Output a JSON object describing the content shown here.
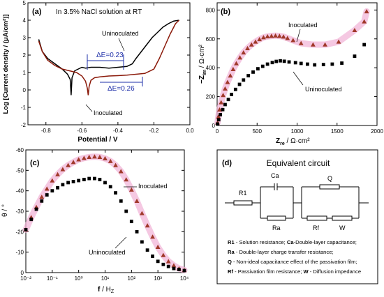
{
  "colors": {
    "uninoculated": "#000000",
    "inoculated_line": "#8B1A0A",
    "inoculated_marker": "#A0392A",
    "inoculated_halo": "#F2B6D8",
    "annotation": "#1E2FA8"
  },
  "chart_data": [
    {
      "panel": "(a)",
      "type": "line",
      "title": "In 3.5% NaCl solution at RT",
      "xlabel": "Potential / V",
      "ylabel": "Log [Current density / (μA/cm²)]",
      "xlim": [
        -0.9,
        0.0
      ],
      "ylim": [
        -2.0,
        5.0
      ],
      "xticks": [
        "-0.8",
        "-0.6",
        "-0.4",
        "-0.2",
        "0.0"
      ],
      "xtick_values": [
        -0.8,
        -0.6,
        -0.4,
        -0.2,
        0.0
      ],
      "yticks": [
        "-2",
        "-1",
        "0",
        "1",
        "2",
        "3",
        "4",
        "5"
      ],
      "ytick_values": [
        -2,
        -1,
        0,
        1,
        2,
        3,
        4,
        5
      ],
      "series": [
        {
          "name": "Uninoculated",
          "x": [
            -0.84,
            -0.82,
            -0.79,
            -0.75,
            -0.71,
            -0.68,
            -0.665,
            -0.66,
            -0.655,
            -0.64,
            -0.62,
            -0.6,
            -0.58,
            -0.55,
            -0.5,
            -0.45,
            -0.4,
            -0.35,
            -0.32,
            -0.3,
            -0.27,
            -0.24,
            -0.21,
            -0.18,
            -0.15,
            -0.12,
            -0.09,
            -0.06
          ],
          "y": [
            2.9,
            2.2,
            1.8,
            1.5,
            1.2,
            0.9,
            0.6,
            -0.3,
            0.7,
            1.1,
            1.2,
            1.3,
            1.25,
            1.3,
            1.3,
            1.25,
            1.3,
            1.35,
            1.5,
            1.8,
            2.2,
            2.6,
            3.0,
            3.3,
            3.6,
            3.8,
            3.95,
            4.0
          ]
        },
        {
          "name": "Inoculated",
          "x": [
            -0.84,
            -0.82,
            -0.79,
            -0.75,
            -0.71,
            -0.67,
            -0.63,
            -0.6,
            -0.58,
            -0.57,
            -0.565,
            -0.56,
            -0.55,
            -0.53,
            -0.5,
            -0.45,
            -0.4,
            -0.35,
            -0.3,
            -0.25,
            -0.2,
            -0.17,
            -0.14,
            -0.11,
            -0.08,
            -0.06
          ],
          "y": [
            2.8,
            2.2,
            1.7,
            1.4,
            1.2,
            1.1,
            1.0,
            0.8,
            0.5,
            0.1,
            -0.3,
            0.2,
            0.55,
            0.7,
            0.75,
            0.8,
            0.82,
            0.85,
            0.9,
            0.95,
            1.2,
            1.8,
            2.5,
            3.2,
            3.8,
            4.0
          ]
        }
      ],
      "annotations": {
        "dE1": "ΔE=0.23",
        "dE2": "ΔE=0.26",
        "lab_un": "Uninoculated",
        "lab_in": "Inoculated"
      }
    },
    {
      "panel": "(b)",
      "type": "scatter",
      "xlabel": "Z_re / Ω·cm²",
      "ylabel": "−Z_im / Ω·cm²",
      "xlim": [
        0,
        2000
      ],
      "ylim": [
        0,
        850
      ],
      "xticks": [
        "0",
        "500",
        "1000",
        "1500",
        "2000"
      ],
      "xtick_values": [
        0,
        500,
        1000,
        1500,
        2000
      ],
      "yticks": [
        "0",
        "200",
        "400",
        "600",
        "800"
      ],
      "ytick_values": [
        0,
        200,
        400,
        600,
        800
      ],
      "series": [
        {
          "name": "Inoculated",
          "marker": "triangle",
          "x": [
            5,
            15,
            30,
            50,
            75,
            100,
            130,
            165,
            200,
            240,
            285,
            330,
            380,
            430,
            480,
            530,
            580,
            630,
            680,
            730,
            780,
            830,
            880,
            950,
            1050,
            1200,
            1350,
            1520,
            1720,
            1840,
            1870
          ],
          "y": [
            20,
            60,
            110,
            160,
            210,
            255,
            300,
            345,
            390,
            430,
            470,
            505,
            535,
            560,
            580,
            597,
            610,
            617,
            620,
            622,
            620,
            615,
            605,
            590,
            570,
            560,
            560,
            580,
            660,
            720,
            790
          ]
        },
        {
          "name": "Uninoculated",
          "marker": "square",
          "x": [
            5,
            20,
            40,
            70,
            100,
            140,
            180,
            230,
            280,
            330,
            390,
            450,
            510,
            570,
            630,
            690,
            740,
            790,
            840,
            900,
            980,
            1050,
            1130,
            1220,
            1330,
            1440,
            1560,
            1720,
            1840
          ],
          "y": [
            10,
            40,
            75,
            110,
            145,
            180,
            215,
            250,
            285,
            315,
            345,
            370,
            393,
            410,
            425,
            436,
            444,
            448,
            445,
            440,
            435,
            430,
            425,
            420,
            422,
            425,
            432,
            480,
            560
          ]
        }
      ],
      "annotations": {
        "lab_in": "Inoculated",
        "lab_un": "Uninoculated"
      }
    },
    {
      "panel": "(c)",
      "type": "scatter",
      "xlabel": "f / Hz",
      "ylabel": "θ / °",
      "xscale": "log",
      "xlim": [
        0.01,
        10000
      ],
      "ylim": [
        0,
        -60
      ],
      "xticks": [
        "10⁻²",
        "10⁻¹",
        "10⁰",
        "10¹",
        "10²",
        "10³",
        "10⁴"
      ],
      "xtick_values": [
        0.01,
        0.1,
        1,
        10,
        100,
        1000,
        10000
      ],
      "yticks": [
        "0",
        "-10",
        "-20",
        "-30",
        "-40",
        "-50",
        "-60"
      ],
      "ytick_values": [
        0,
        -10,
        -20,
        -30,
        -40,
        -50,
        -60
      ],
      "series": [
        {
          "name": "Inoculated",
          "marker": "triangle",
          "x": [
            0.01,
            0.016,
            0.025,
            0.04,
            0.063,
            0.1,
            0.16,
            0.25,
            0.4,
            0.63,
            1,
            1.6,
            2.5,
            4,
            6.3,
            10,
            16,
            25,
            40,
            63,
            100,
            160,
            250,
            400,
            630,
            1000,
            1600,
            2500,
            4000,
            6300,
            10000
          ],
          "y": [
            -21,
            -27,
            -32,
            -37,
            -41,
            -45,
            -48,
            -50.5,
            -52.5,
            -54,
            -55.3,
            -56,
            -56.5,
            -56.7,
            -56.5,
            -55.8,
            -54.5,
            -52.5,
            -49.5,
            -45.5,
            -40.5,
            -35,
            -29,
            -23,
            -17.5,
            -12.5,
            -8.5,
            -5.5,
            -3.5,
            -2,
            -1.2
          ]
        },
        {
          "name": "Uninoculated",
          "marker": "square",
          "x": [
            0.01,
            0.016,
            0.025,
            0.04,
            0.063,
            0.1,
            0.16,
            0.25,
            0.4,
            0.63,
            1,
            1.6,
            2.5,
            4,
            6.3,
            10,
            16,
            25,
            40,
            63,
            100,
            160,
            250,
            400,
            630,
            1000,
            1600,
            2500,
            4000,
            6300,
            10000
          ],
          "y": [
            -21,
            -26,
            -31,
            -35,
            -38,
            -40,
            -41.5,
            -43,
            -44,
            -44.5,
            -45,
            -45.5,
            -46,
            -46,
            -45.5,
            -44,
            -42,
            -39,
            -35,
            -30,
            -25,
            -20,
            -15,
            -11,
            -8,
            -5.5,
            -4,
            -3,
            -2,
            -1.5,
            -1
          ]
        }
      ],
      "annotations": {
        "lab_in": "Inoculated",
        "lab_un": "Uninoculated"
      }
    }
  ],
  "circuit_panel": {
    "panel": "(d)",
    "title": "Equivalent circuit",
    "elements": {
      "r1": "R1",
      "ca": "Ca",
      "ra": "Ra",
      "q": "Q",
      "rf": "Rf",
      "w": "W"
    },
    "legend": [
      [
        {
          "b": "R1",
          "t": " - Solution resistance; "
        },
        {
          "b": "Ca",
          "t": "-Double-layer capacitance;"
        }
      ],
      [
        {
          "b": "Ra",
          "t": " - Double-layer charge transfer resistance;"
        }
      ],
      [
        {
          "b": "Q",
          "t": "  - Non-ideal capacitance effect of the passivation film;"
        }
      ],
      [
        {
          "b": "Rf",
          "t": " - Passivation film resistance; "
        },
        {
          "b": "W",
          "t": " - Diffusion impedance"
        }
      ]
    ]
  }
}
